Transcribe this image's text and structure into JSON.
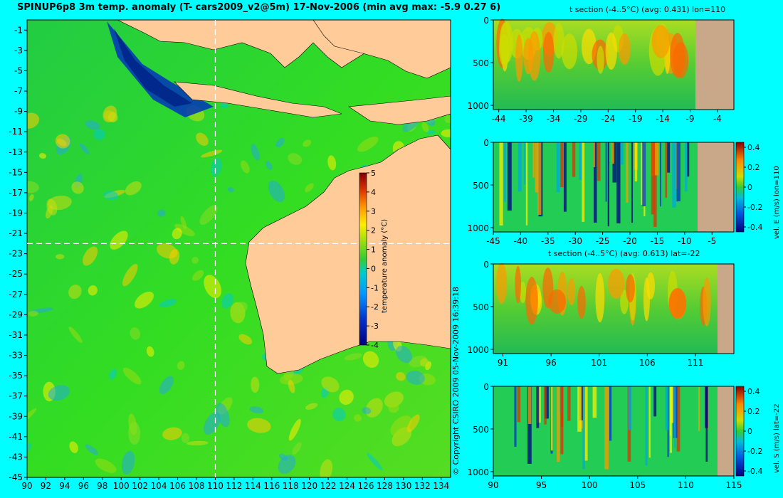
{
  "main_title": "SPINUP6p8 3m temp. anomaly (T- cars2009_v2@5m) 17-Nov-2006 (min avg max: -5.9 0.27 6)",
  "copyright": "© Copyright CSIRO 2009   05-Nov-2009 16:39:18",
  "colors": {
    "background": "#00ffff",
    "land": "#ffcc99",
    "section_land": "#c8a888"
  },
  "chart_data": [
    {
      "type": "heatmap",
      "name": "map",
      "x_ticks": [
        "90",
        "92",
        "94",
        "96",
        "98",
        "100",
        "102",
        "104",
        "106",
        "108",
        "110",
        "112",
        "114",
        "116",
        "118",
        "120",
        "122",
        "124",
        "126",
        "128",
        "130",
        "132",
        "134"
      ],
      "y_ticks": [
        "-1",
        "-3",
        "-5",
        "-7",
        "-9",
        "-11",
        "-13",
        "-15",
        "-17",
        "-19",
        "-21",
        "-23",
        "-25",
        "-27",
        "-29",
        "-31",
        "-33",
        "-35",
        "-37",
        "-39",
        "-41",
        "-43",
        "-45"
      ],
      "xlim": [
        90,
        135
      ],
      "ylim": [
        -45,
        0
      ],
      "section_lon": 110,
      "section_lat": -22,
      "colorbar": {
        "label": "temperature anomaly (°C)",
        "ticks": [
          "5",
          "4",
          "3",
          "2",
          "1",
          "0",
          "-1",
          "-2",
          "-3",
          "-4"
        ],
        "range": [
          -4,
          5
        ]
      }
    },
    {
      "type": "heatmap",
      "name": "t-section-lon110",
      "title": "t section (-4..5°C) (avg: 0.431) lon=110",
      "x_ticks": [
        "-44",
        "-39",
        "-34",
        "-29",
        "-24",
        "-19",
        "-14",
        "-9",
        "-4"
      ],
      "y_ticks": [
        "0",
        "500",
        "1000"
      ],
      "xlim": [
        -45,
        -1
      ],
      "ylim": [
        1050,
        0
      ]
    },
    {
      "type": "heatmap",
      "name": "vel-e-section-lon110",
      "x_ticks": [
        "-45",
        "-40",
        "-35",
        "-30",
        "-25",
        "-20",
        "-15",
        "-10",
        "-5"
      ],
      "y_ticks": [
        "0",
        "500",
        "1000"
      ],
      "xlim": [
        -45,
        -1
      ],
      "ylim": [
        1050,
        0
      ],
      "colorbar": {
        "label": "vel. E (m/s) lon=110",
        "ticks": [
          "0.4",
          "0.2",
          "0",
          "-0.2",
          "-0.4"
        ],
        "range": [
          -0.45,
          0.45
        ]
      }
    },
    {
      "type": "heatmap",
      "name": "t-section-lat-22",
      "title": "t section (-4..5°C) (avg: 0.613) lat=-22",
      "x_ticks": [
        "91",
        "96",
        "101",
        "106",
        "111"
      ],
      "y_ticks": [
        "0",
        "500",
        "1000"
      ],
      "xlim": [
        90,
        115
      ],
      "ylim": [
        1050,
        0
      ]
    },
    {
      "type": "heatmap",
      "name": "vel-s-section-lat-22",
      "x_ticks": [
        "90",
        "95",
        "100",
        "105",
        "110",
        "115"
      ],
      "y_ticks": [
        "0",
        "500",
        "1000"
      ],
      "xlim": [
        90,
        115
      ],
      "ylim": [
        1050,
        0
      ],
      "colorbar": {
        "label": "vel. S (m/s) lat=-22",
        "ticks": [
          "0.4",
          "0.2",
          "0",
          "-0.2",
          "-0.4"
        ],
        "range": [
          -0.45,
          0.45
        ]
      }
    }
  ]
}
